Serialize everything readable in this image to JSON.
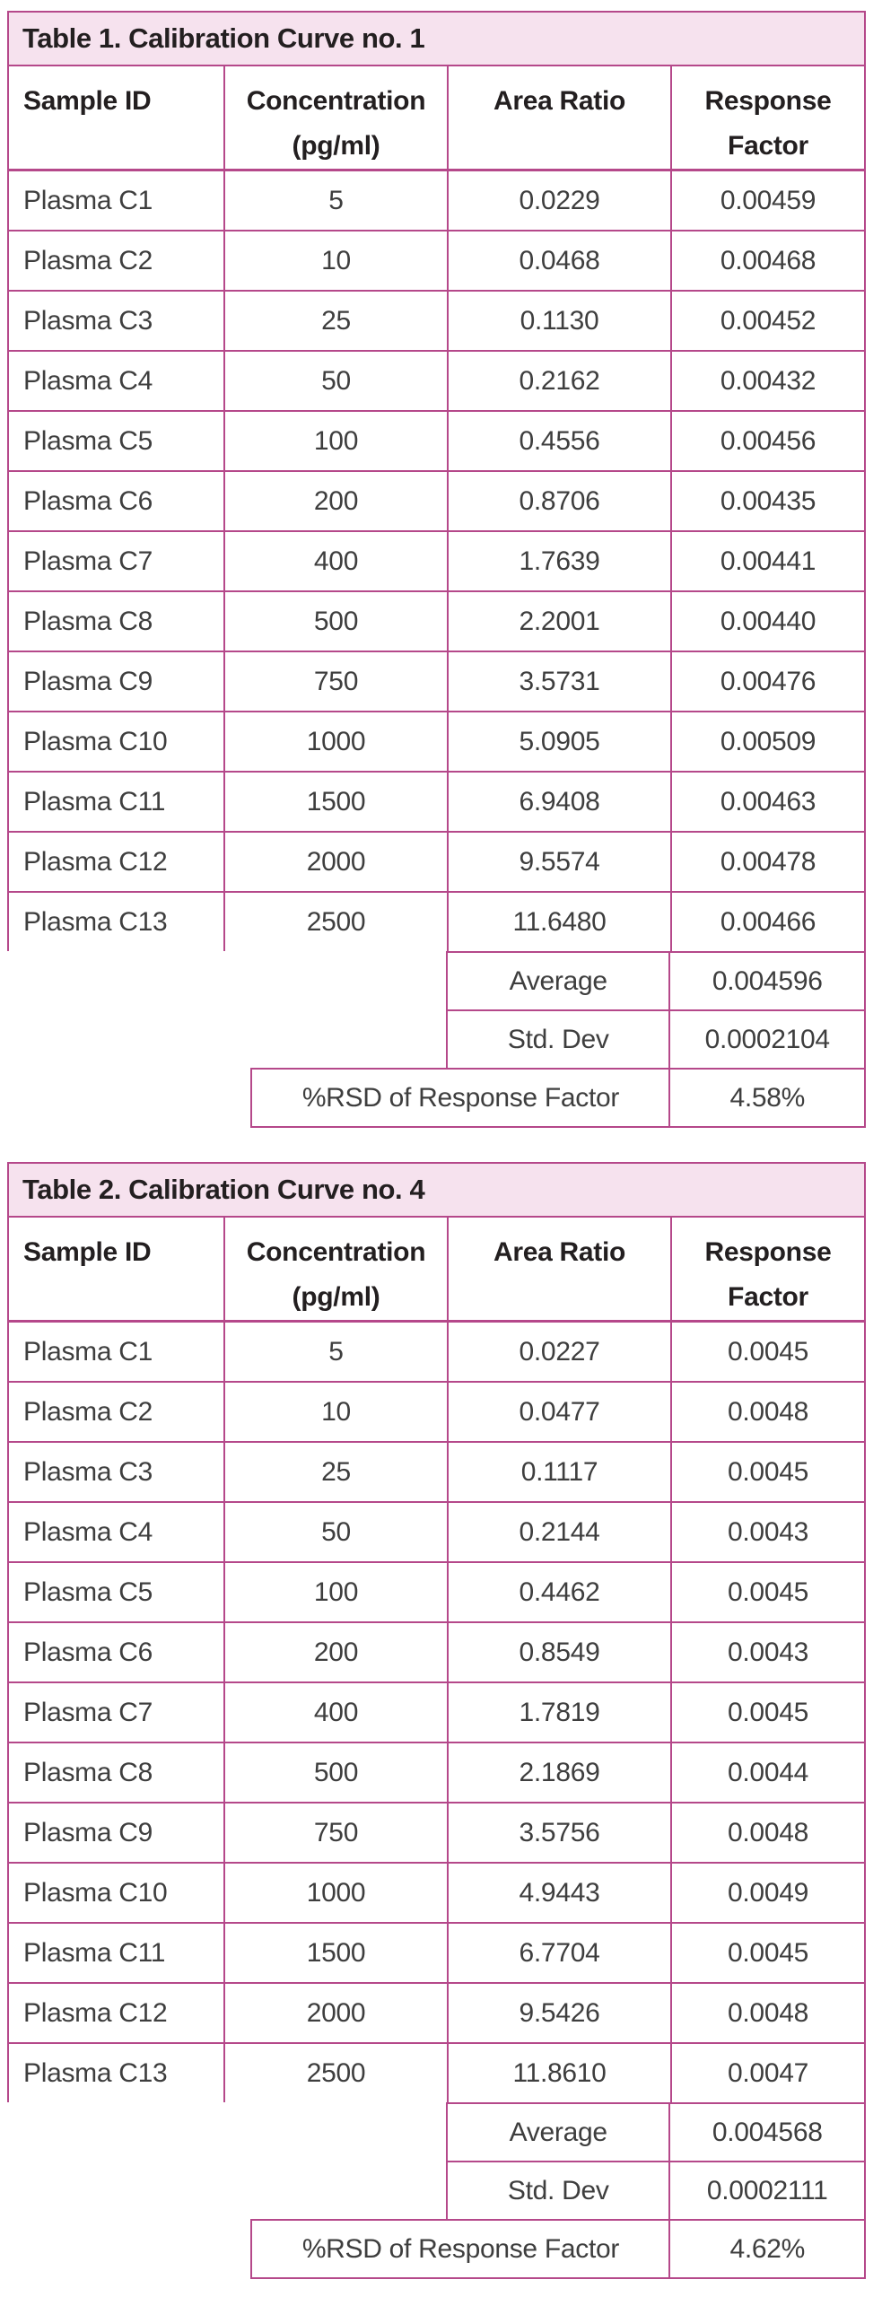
{
  "colors": {
    "table_line": "#b5488a",
    "title_band_bg": "#f6e2ee",
    "title_text": "#231f20",
    "data_text": "#3e3e3e"
  },
  "tables": [
    {
      "title": "Table 1. Calibration Curve no. 1",
      "headers": [
        "Sample ID",
        "Concentration\n(pg/ml)",
        "Area Ratio",
        "Response\nFactor"
      ],
      "rows": [
        [
          "Plasma C1",
          "5",
          "0.0229",
          "0.00459"
        ],
        [
          "Plasma C2",
          "10",
          "0.0468",
          "0.00468"
        ],
        [
          "Plasma C3",
          "25",
          "0.1130",
          "0.00452"
        ],
        [
          "Plasma C4",
          "50",
          "0.2162",
          "0.00432"
        ],
        [
          "Plasma C5",
          "100",
          "0.4556",
          "0.00456"
        ],
        [
          "Plasma C6",
          "200",
          "0.8706",
          "0.00435"
        ],
        [
          "Plasma C7",
          "400",
          "1.7639",
          "0.00441"
        ],
        [
          "Plasma C8",
          "500",
          "2.2001",
          "0.00440"
        ],
        [
          "Plasma C9",
          "750",
          "3.5731",
          "0.00476"
        ],
        [
          "Plasma C10",
          "1000",
          "5.0905",
          "0.00509"
        ],
        [
          "Plasma C11",
          "1500",
          "6.9408",
          "0.00463"
        ],
        [
          "Plasma C12",
          "2000",
          "9.5574",
          "0.00478"
        ],
        [
          "Plasma C13",
          "2500",
          "11.6480",
          "0.00466"
        ]
      ],
      "summary": [
        {
          "key": "average",
          "label": "Average",
          "value": "0.004596"
        },
        {
          "key": "std-dev",
          "label": "Std. Dev",
          "value": "0.0002104"
        }
      ],
      "rsd": {
        "label": "%RSD of Response Factor",
        "value": "4.58%"
      }
    },
    {
      "title": "Table 2. Calibration Curve no. 4",
      "headers": [
        "Sample ID",
        "Concentration\n(pg/ml)",
        "Area Ratio",
        "Response\nFactor"
      ],
      "rows": [
        [
          "Plasma C1",
          "5",
          "0.0227",
          "0.0045"
        ],
        [
          "Plasma C2",
          "10",
          "0.0477",
          "0.0048"
        ],
        [
          "Plasma C3",
          "25",
          "0.1117",
          "0.0045"
        ],
        [
          "Plasma C4",
          "50",
          "0.2144",
          "0.0043"
        ],
        [
          "Plasma C5",
          "100",
          "0.4462",
          "0.0045"
        ],
        [
          "Plasma C6",
          "200",
          "0.8549",
          "0.0043"
        ],
        [
          "Plasma C7",
          "400",
          "1.7819",
          "0.0045"
        ],
        [
          "Plasma C8",
          "500",
          "2.1869",
          "0.0044"
        ],
        [
          "Plasma C9",
          "750",
          "3.5756",
          "0.0048"
        ],
        [
          "Plasma C10",
          "1000",
          "4.9443",
          "0.0049"
        ],
        [
          "Plasma C11",
          "1500",
          "6.7704",
          "0.0045"
        ],
        [
          "Plasma C12",
          "2000",
          "9.5426",
          "0.0048"
        ],
        [
          "Plasma C13",
          "2500",
          "11.8610",
          "0.0047"
        ]
      ],
      "summary": [
        {
          "key": "average",
          "label": "Average",
          "value": "0.004568"
        },
        {
          "key": "std-dev",
          "label": "Std. Dev",
          "value": "0.0002111"
        }
      ],
      "rsd": {
        "label": "%RSD of Response Factor",
        "value": "4.62%"
      }
    }
  ]
}
